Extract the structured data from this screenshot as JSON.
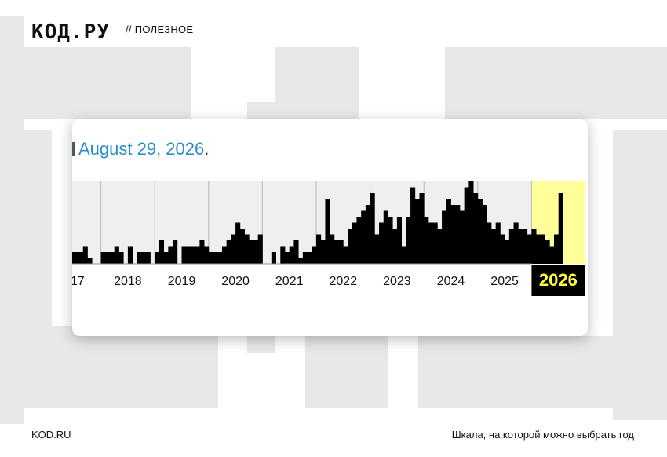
{
  "header": {
    "logo": "КОД.РУ",
    "section": "// ПОЛЕЗНОЕ"
  },
  "card": {
    "date_text": "August 29, 2026",
    "date_suffix": "."
  },
  "chart_data": {
    "type": "bar",
    "x_axis": "year",
    "years": [
      {
        "label": "017",
        "values": [
          0,
          1,
          3,
          2,
          0,
          2,
          2,
          2,
          3,
          1
        ]
      },
      {
        "label": "2018",
        "values": [
          2,
          2,
          2,
          3,
          2,
          0,
          3,
          0,
          2,
          2,
          2,
          0
        ]
      },
      {
        "label": "2019",
        "values": [
          2,
          4,
          2,
          3,
          4,
          0,
          3,
          3,
          3,
          3,
          4,
          3
        ]
      },
      {
        "label": "2020",
        "values": [
          2,
          2,
          2,
          3,
          4,
          5,
          7,
          6,
          5,
          4,
          4,
          5
        ]
      },
      {
        "label": "2021",
        "values": [
          0,
          0,
          2,
          0,
          3,
          2,
          3,
          4,
          1,
          2,
          2,
          3
        ]
      },
      {
        "label": "2022",
        "values": [
          5,
          4,
          11,
          5,
          4,
          4,
          3,
          6,
          7,
          8,
          9,
          10
        ]
      },
      {
        "label": "2023",
        "values": [
          12,
          5,
          7,
          9,
          8,
          6,
          8,
          3,
          8,
          13,
          11,
          12
        ]
      },
      {
        "label": "2024",
        "values": [
          8,
          7,
          7,
          6,
          9,
          11,
          10,
          10,
          9,
          13,
          14,
          12
        ]
      },
      {
        "label": "2025",
        "values": [
          11,
          10,
          7,
          6,
          7,
          5,
          4,
          6,
          7,
          6,
          6,
          5
        ]
      }
    ],
    "highlight_year": {
      "label": "2026",
      "values": [
        6,
        5,
        5,
        4,
        3,
        5,
        12
      ]
    },
    "ylim": [
      0,
      14
    ],
    "highlight_color": "#ffff99",
    "grid": true
  },
  "footer": {
    "left": "KOD.RU",
    "right": "Шкала, на которой можно выбрать год"
  }
}
